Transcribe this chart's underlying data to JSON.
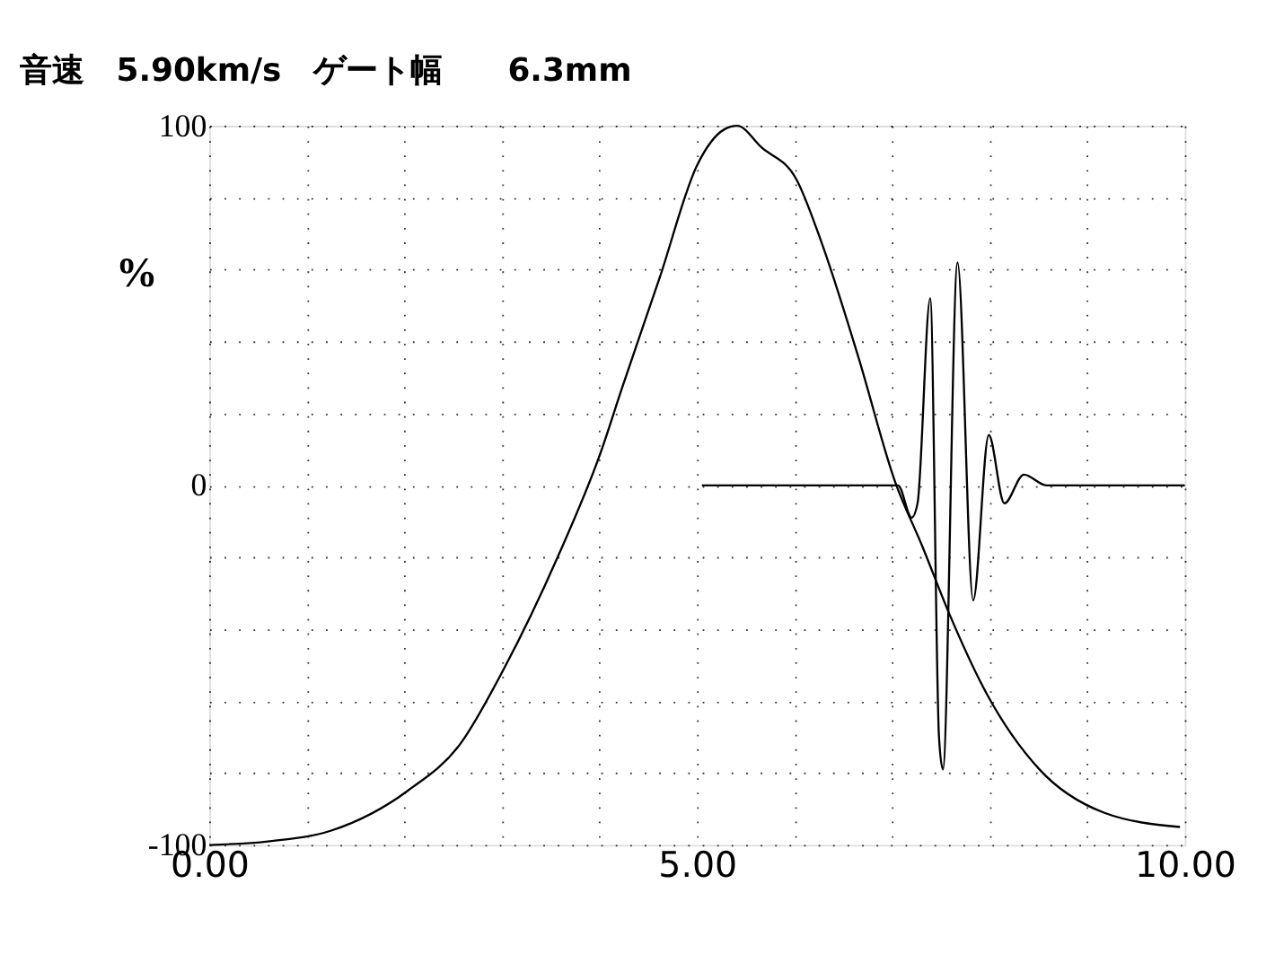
{
  "chart_data": {
    "type": "line",
    "title": "音速　5.90km/s　ゲート幅　　6.3mm",
    "ylabel": "%",
    "xlim": [
      0,
      10
    ],
    "ylim": [
      -100,
      100
    ],
    "xticks": [
      {
        "value": 0,
        "label": "0.00"
      },
      {
        "value": 1,
        "label": null
      },
      {
        "value": 2,
        "label": null
      },
      {
        "value": 3,
        "label": null
      },
      {
        "value": 4,
        "label": null
      },
      {
        "value": 5,
        "label": "5.00"
      },
      {
        "value": 6,
        "label": null
      },
      {
        "value": 7,
        "label": null
      },
      {
        "value": 8,
        "label": null
      },
      {
        "value": 9,
        "label": null
      },
      {
        "value": 10,
        "label": "10.00"
      }
    ],
    "yticks": [
      -100,
      {
        "value": -80,
        "label": null
      },
      {
        "value": -60,
        "label": null
      },
      {
        "value": -40,
        "label": null
      },
      {
        "value": -20,
        "label": null
      },
      0,
      {
        "value": 20,
        "label": null
      },
      {
        "value": 40,
        "label": null
      },
      {
        "value": 60,
        "label": null
      },
      {
        "value": 80,
        "label": null
      },
      100
    ],
    "grid": true,
    "marker": "none",
    "line_style": "solid",
    "series": [
      {
        "color": "#000000",
        "x": [
          0,
          0.6,
          1.25,
          2.03,
          2.57,
          3.02,
          3.57,
          4.01,
          4.23,
          4.62,
          5.0,
          5.28,
          5.41,
          5.66,
          6.02,
          6.27,
          6.65,
          7.03,
          7.31,
          7.59,
          7.97,
          8.51,
          9.17,
          9.95
        ],
        "values": [
          -100,
          -99,
          -96,
          -85,
          -72,
          -51,
          -20,
          9,
          27,
          58,
          89,
          99,
          100,
          94,
          85,
          68,
          36,
          1,
          -17,
          -36,
          -58,
          -79,
          -91,
          -95
        ]
      },
      {
        "color": "#000000",
        "x": [
          5.05,
          7.06,
          7.2,
          7.26,
          7.39,
          7.48,
          7.52,
          7.67,
          7.83,
          7.99,
          8.15,
          8.35,
          8.58,
          8.75,
          10.0
        ],
        "values": [
          0,
          0,
          -9,
          -5,
          52,
          -70,
          -79,
          62,
          -32,
          14,
          -5,
          3,
          0,
          0,
          0
        ]
      }
    ]
  }
}
